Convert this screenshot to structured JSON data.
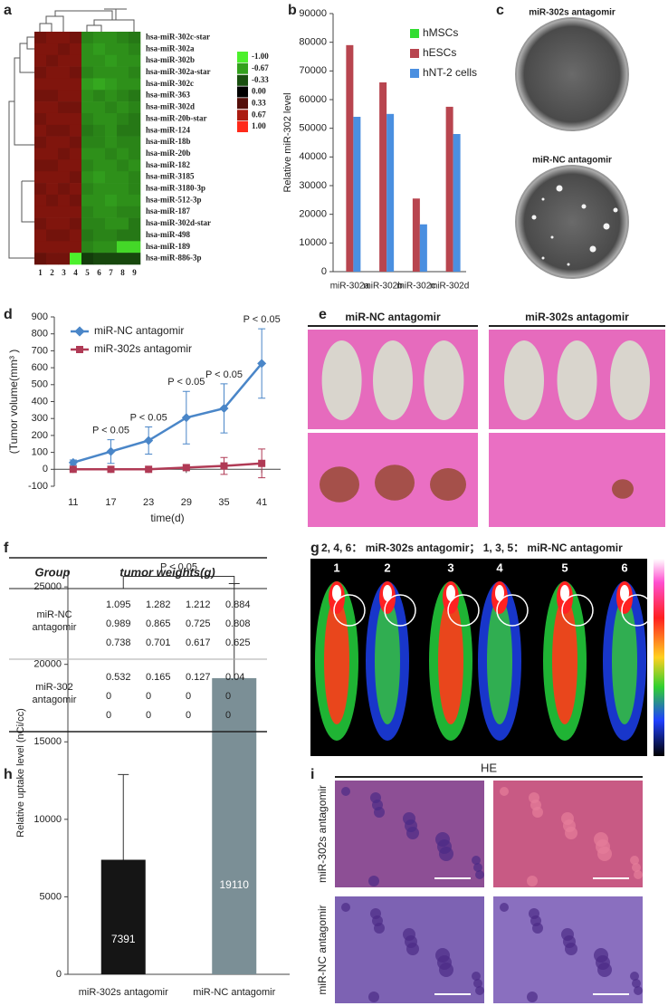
{
  "panel_labels": [
    "a",
    "b",
    "c",
    "d",
    "e",
    "f",
    "g",
    "h",
    "i"
  ],
  "chart_data": [
    {
      "type": "heatmap",
      "x": [
        "1",
        "2",
        "3",
        "4",
        "5",
        "6",
        "7",
        "8",
        "9"
      ],
      "y": [
        "hsa-miR-302c-star",
        "hsa-miR-302a",
        "hsa-miR-302b",
        "hsa-miR-302a-star",
        "hsa-miR-302c",
        "hsa-miR-363",
        "hsa-miR-302d",
        "hsa-miR-20b-star",
        "hsa-miR-124",
        "hsa-miR-18b",
        "hsa-miR-20b",
        "hsa-miR-182",
        "hsa-miR-3185",
        "hsa-miR-3180-3p",
        "hsa-miR-512-3p",
        "hsa-miR-187",
        "hsa-miR-302d-star",
        "hsa-miR-498",
        "hsa-miR-189",
        "hsa-miR-886-3p"
      ],
      "values": [
        [
          0.45,
          0.5,
          0.5,
          0.45,
          -0.55,
          -0.6,
          -0.6,
          -0.55,
          -0.5
        ],
        [
          0.5,
          0.5,
          0.45,
          0.5,
          -0.6,
          -0.65,
          -0.6,
          -0.6,
          -0.55
        ],
        [
          0.5,
          0.45,
          0.5,
          0.5,
          -0.6,
          -0.6,
          -0.65,
          -0.6,
          -0.6
        ],
        [
          0.45,
          0.5,
          0.5,
          0.45,
          -0.55,
          -0.6,
          -0.6,
          -0.6,
          -0.55
        ],
        [
          0.5,
          0.5,
          0.5,
          0.5,
          -0.65,
          -0.7,
          -0.65,
          -0.6,
          -0.6
        ],
        [
          0.45,
          0.45,
          0.5,
          0.5,
          -0.6,
          -0.55,
          -0.6,
          -0.55,
          -0.5
        ],
        [
          0.5,
          0.5,
          0.45,
          0.45,
          -0.6,
          -0.6,
          -0.55,
          -0.6,
          -0.55
        ],
        [
          0.45,
          0.5,
          0.5,
          0.5,
          -0.55,
          -0.6,
          -0.6,
          -0.55,
          -0.5
        ],
        [
          0.5,
          0.45,
          0.45,
          0.5,
          -0.5,
          -0.55,
          -0.6,
          -0.5,
          -0.5
        ],
        [
          0.45,
          0.5,
          0.5,
          0.45,
          -0.55,
          -0.55,
          -0.6,
          -0.55,
          -0.55
        ],
        [
          0.5,
          0.5,
          0.45,
          0.5,
          -0.6,
          -0.6,
          -0.55,
          -0.6,
          -0.55
        ],
        [
          0.45,
          0.45,
          0.5,
          0.5,
          -0.55,
          -0.6,
          -0.6,
          -0.55,
          -0.6
        ],
        [
          0.5,
          0.5,
          0.5,
          0.45,
          -0.6,
          -0.65,
          -0.6,
          -0.6,
          -0.55
        ],
        [
          0.45,
          0.5,
          0.45,
          0.5,
          -0.55,
          -0.6,
          -0.6,
          -0.6,
          -0.55
        ],
        [
          0.5,
          0.45,
          0.5,
          0.45,
          -0.6,
          -0.6,
          -0.65,
          -0.6,
          -0.6
        ],
        [
          0.5,
          0.5,
          0.5,
          0.5,
          -0.55,
          -0.6,
          -0.6,
          -0.55,
          -0.55
        ],
        [
          0.45,
          0.5,
          0.5,
          0.45,
          -0.55,
          -0.55,
          -0.6,
          -0.6,
          -0.5
        ],
        [
          0.5,
          0.45,
          0.45,
          0.5,
          -0.5,
          -0.55,
          -0.55,
          -0.5,
          -0.5
        ],
        [
          0.5,
          0.5,
          0.5,
          0.5,
          -0.55,
          -0.6,
          -0.6,
          -0.9,
          -0.9
        ],
        [
          0.4,
          0.45,
          0.45,
          -1,
          -0.25,
          -0.3,
          -0.3,
          -0.3,
          -0.3
        ]
      ],
      "zlim": [
        -1,
        1
      ],
      "colors": {
        "low": "#4cf02c",
        "mid": "#000000",
        "high": "#ff2a1a"
      },
      "colorbar_ticks": [
        {
          "value": -1,
          "label": "-1.00"
        },
        {
          "value": -0.67,
          "label": "-0.67"
        },
        {
          "value": -0.33,
          "label": "-0.33"
        },
        {
          "value": 0,
          "label": "0.00"
        },
        {
          "value": 0.33,
          "label": "0.33"
        },
        {
          "value": 0.67,
          "label": "0.67"
        },
        {
          "value": 1,
          "label": "1.00"
        }
      ]
    },
    {
      "type": "bar",
      "ylabel": "Relative miR-302 level",
      "categories": [
        "miR-302a",
        "miR-302b",
        "miR-302c",
        "miR-302d"
      ],
      "series": [
        {
          "name": "hMSCs",
          "color": "#33dd33",
          "values": [
            0,
            0,
            0,
            0
          ]
        },
        {
          "name": "hESCs",
          "color": "#b8454f",
          "values": [
            79000,
            66000,
            25500,
            57500
          ]
        },
        {
          "name": "hNT-2 cells",
          "color": "#4a8fe0",
          "values": [
            54000,
            55000,
            16500,
            48000
          ]
        }
      ],
      "ylim": [
        0,
        90000
      ],
      "yticks": [
        0,
        10000,
        20000,
        30000,
        40000,
        50000,
        60000,
        70000,
        80000,
        90000
      ],
      "legend": "upper right"
    },
    {
      "type": "line",
      "xlabel": "time(d)",
      "ylabel": "(Tumor volume(mm³ )",
      "x": [
        11,
        17,
        23,
        29,
        35,
        41
      ],
      "series": [
        {
          "name": "miR-NC antagomir",
          "color": "#4a86c8",
          "marker": "diamond",
          "values": [
            40,
            105,
            170,
            305,
            360,
            625
          ],
          "errors": [
            15,
            70,
            80,
            155,
            145,
            205
          ]
        },
        {
          "name": "miR-302s antagomir",
          "color": "#b03a55",
          "marker": "square",
          "values": [
            0,
            0,
            0,
            10,
            20,
            35
          ],
          "errors": [
            5,
            5,
            5,
            15,
            50,
            85
          ]
        }
      ],
      "xlim": [
        8,
        44
      ],
      "xticks": [
        11,
        17,
        23,
        29,
        35,
        41
      ],
      "ylim": [
        -100,
        900
      ],
      "yticks": [
        -100,
        0,
        100,
        200,
        300,
        400,
        500,
        600,
        700,
        800,
        900
      ],
      "legend": "upper left",
      "annotations": [
        {
          "x": 17,
          "text": "P < 0.05"
        },
        {
          "x": 23,
          "text": "P < 0.05"
        },
        {
          "x": 29,
          "text": "P < 0.05"
        },
        {
          "x": 35,
          "text": "P < 0.05"
        },
        {
          "x": 41,
          "text": "P < 0.05"
        }
      ]
    },
    {
      "type": "bar",
      "ylabel": "Relative uptake level (nCi/cc)",
      "categories": [
        "miR-302s antagomir",
        "miR-NC antagomir"
      ],
      "values": [
        7391,
        19110
      ],
      "errors": [
        5500,
        6100
      ],
      "colors": [
        "#151515",
        "#7b8f96"
      ],
      "ylim": [
        0,
        26000
      ],
      "yticks": [
        0,
        5000,
        10000,
        15000,
        20000,
        25000
      ],
      "annotation": "P < 0.05"
    }
  ],
  "panel_c": {
    "labels": [
      "miR-302s antagomir",
      "miR-NC antagomir"
    ]
  },
  "panel_e": {
    "labels": [
      "miR-NC antagomir",
      "miR-302s antagomir"
    ]
  },
  "table_f": {
    "columns": [
      "Group",
      "tumor weights(g)"
    ],
    "rows": [
      {
        "group": "miR-NC antagomir",
        "weights": [
          [
            1.095,
            1.282,
            1.212,
            0.884
          ],
          [
            0.989,
            0.865,
            0.725,
            0.808
          ],
          [
            0.738,
            0.701,
            0.617,
            0.625
          ]
        ]
      },
      {
        "group": "miR-302 antagomir",
        "weights": [
          [
            0.532,
            0.165,
            0.127,
            0.04
          ],
          [
            0,
            0,
            0,
            0
          ],
          [
            0,
            0,
            0,
            0
          ]
        ]
      }
    ]
  },
  "panel_g": {
    "title": "2, 4, 6： miR-302s antagomir； 1, 3, 5： miR-NC antagomir",
    "lanes": [
      "1",
      "2",
      "3",
      "4",
      "5",
      "6"
    ]
  },
  "panel_i": {
    "title": "HE",
    "row_labels": [
      "miR-302s antagomir",
      "miR-NC antagomir"
    ]
  }
}
